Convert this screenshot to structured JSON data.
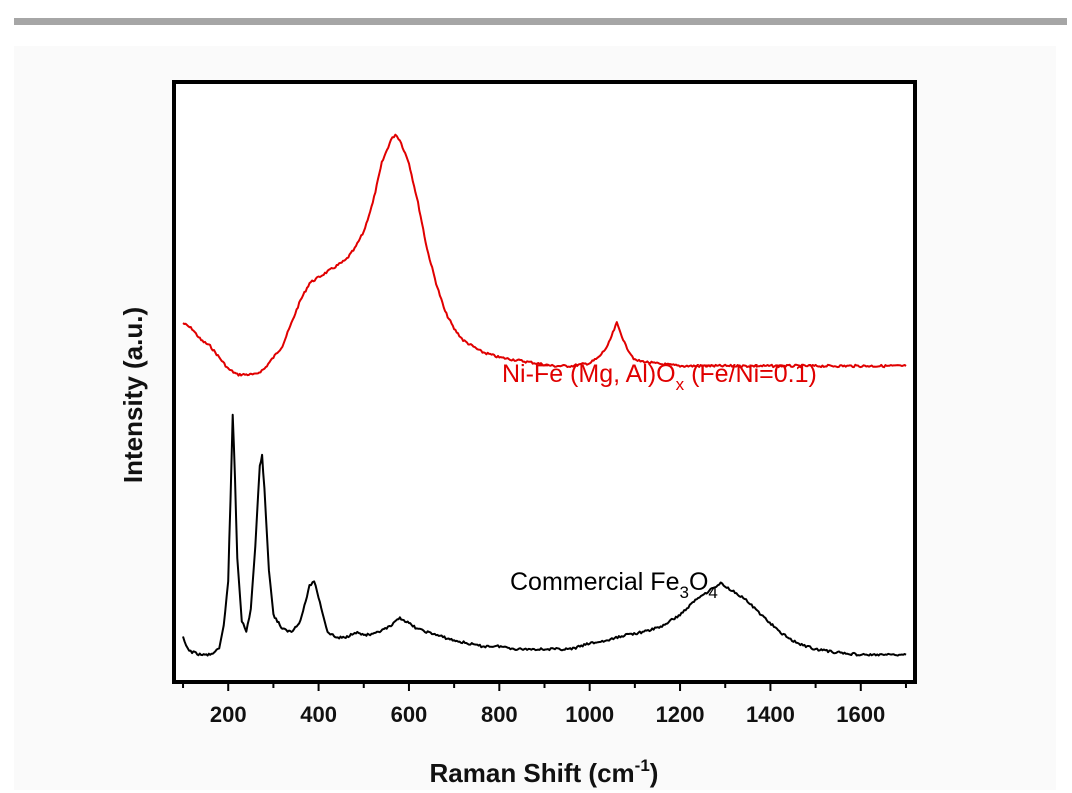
{
  "chart_data": {
    "type": "line",
    "xlabel_main": "Raman Shift (cm",
    "xlabel_sup": "-1",
    "xlabel_end": ")",
    "ylabel": "Intensity (a.u.)",
    "xlim": [
      80,
      1720
    ],
    "ylim": [
      0,
      100
    ],
    "x_ticks": [
      200,
      400,
      600,
      800,
      1000,
      1200,
      1400,
      1600
    ],
    "y_ticks_shown": false,
    "colors": {
      "ni_fe": "#e00000",
      "commercial": "#000000"
    },
    "series": [
      {
        "key": "ni_fe",
        "label_parts": [
          {
            "t": "Ni-Fe (Mg, Al)O",
            "s": "n"
          },
          {
            "t": "x",
            "s": "sub"
          },
          {
            "t": " (Fe/Ni=0.1)",
            "s": "n"
          }
        ],
        "x": [
          100,
          120,
          140,
          160,
          180,
          200,
          220,
          240,
          260,
          280,
          300,
          320,
          340,
          360,
          380,
          400,
          420,
          440,
          460,
          480,
          500,
          520,
          540,
          560,
          570,
          580,
          600,
          620,
          640,
          660,
          680,
          700,
          720,
          740,
          760,
          780,
          800,
          840,
          880,
          920,
          960,
          1000,
          1020,
          1040,
          1060,
          1080,
          1100,
          1140,
          1200,
          1300,
          1400,
          1500,
          1600,
          1700
        ],
        "y": [
          61,
          60,
          58,
          57,
          55,
          53,
          52,
          52,
          52,
          53,
          55,
          57,
          61,
          65,
          68,
          69,
          70,
          71,
          72,
          74,
          77,
          82,
          89,
          93,
          94,
          93,
          89,
          82,
          74,
          68,
          63,
          60,
          58,
          57,
          56,
          55.5,
          55,
          54.5,
          54,
          53.5,
          53.5,
          54,
          55,
          57,
          61,
          57,
          54.5,
          54,
          53.5,
          53.5,
          53.5,
          53.5,
          53.5,
          53.5
        ]
      },
      {
        "key": "commercial",
        "label_parts": [
          {
            "t": "Commercial Fe",
            "s": "n"
          },
          {
            "t": "3",
            "s": "sub"
          },
          {
            "t": "O",
            "s": "n"
          },
          {
            "t": "4",
            "s": "sub"
          }
        ],
        "x": [
          100,
          110,
          120,
          140,
          160,
          180,
          190,
          200,
          205,
          210,
          215,
          220,
          230,
          240,
          250,
          260,
          270,
          275,
          280,
          290,
          300,
          320,
          340,
          360,
          380,
          390,
          400,
          420,
          440,
          460,
          480,
          500,
          520,
          560,
          580,
          600,
          620,
          660,
          700,
          760,
          800,
          840,
          880,
          920,
          960,
          1000,
          1040,
          1080,
          1120,
          1160,
          1200,
          1240,
          1280,
          1290,
          1300,
          1340,
          1380,
          1420,
          1460,
          1500,
          1540,
          1600,
          1700
        ],
        "y": [
          6,
          4,
          3.5,
          3,
          3,
          4,
          8,
          16,
          30,
          45,
          34,
          20,
          9,
          7,
          11,
          22,
          36,
          38,
          32,
          18,
          10,
          7.5,
          7,
          9,
          15,
          16,
          13,
          7,
          6,
          6,
          7,
          6.5,
          6.5,
          8,
          9.5,
          8.5,
          7.5,
          6.5,
          5.5,
          4.5,
          4.5,
          4,
          4,
          4,
          4,
          5,
          5.5,
          6.5,
          7,
          8,
          10,
          13,
          15,
          15.5,
          15,
          13,
          10,
          7,
          5,
          4,
          3.5,
          3,
          3
        ]
      }
    ]
  }
}
